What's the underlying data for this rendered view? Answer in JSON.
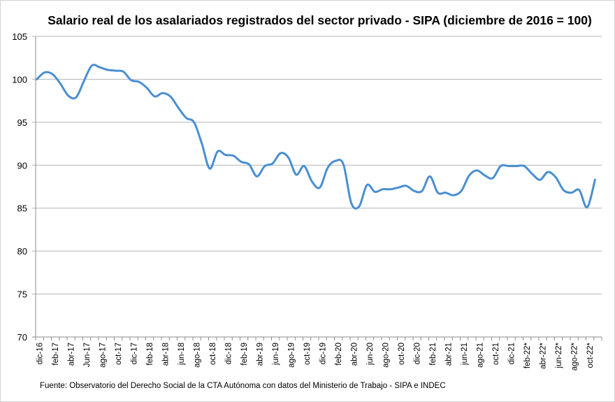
{
  "chart_data": {
    "type": "line",
    "title": "Salario real de los asalariados registrados del sector privado - SIPA (diciembre de 2016 = 100)",
    "xlabel": "",
    "ylabel": "",
    "ylim": [
      70,
      105
    ],
    "yticks": [
      70,
      75,
      80,
      85,
      90,
      95,
      100,
      105
    ],
    "grid": true,
    "legend": "none",
    "line_color": "#4a8fd1",
    "x": [
      "dic-16",
      "ene-17",
      "feb-17",
      "mar-17",
      "abr-17",
      "may-17",
      "Jun-17",
      "jul-17",
      "ago-17",
      "sep-17",
      "oct-17",
      "nov-17",
      "dic-17",
      "ene-18",
      "feb-18",
      "mar-18",
      "abr-18",
      "may-18",
      "jun-18",
      "jul-18",
      "ago-18",
      "sep-18",
      "oct-18",
      "nov-18",
      "dic-18",
      "ene-19",
      "feb-19",
      "mar-19",
      "abr-19",
      "may-19",
      "jun-19",
      "jul-19",
      "ago-19",
      "sep-19",
      "oct-19",
      "nov-19",
      "dic-19",
      "ene-20",
      "feb-20",
      "mar-20",
      "abr-20",
      "may-20",
      "jun-20",
      "jul-20",
      "ago-20",
      "sep-20",
      "oct-20",
      "nov-20",
      "dic-20",
      "ene-21",
      "feb-21",
      "mar-21",
      "abr-21",
      "may-21",
      "jun-21",
      "jul-21",
      "ago-21",
      "sep-21",
      "oct-21",
      "nov-21",
      "dic-21",
      "ene-22*",
      "feb-22*",
      "mar-22*",
      "abr-22*",
      "may-22*",
      "jun-22*",
      "jul-22*",
      "ago-22*",
      "sep-22*",
      "oct-22*",
      "nov-22*"
    ],
    "xtick_labels": [
      "dic-16",
      "feb-17",
      "abr-17",
      "Jun-17",
      "ago-17",
      "oct-17",
      "dic-17",
      "feb-18",
      "abr-18",
      "jun-18",
      "ago-18",
      "oct-18",
      "dic-18",
      "feb-19",
      "abr-19",
      "jun-19",
      "ago-19",
      "oct-19",
      "dic-19",
      "feb-20",
      "abr-20",
      "jun-20",
      "ago-20",
      "oct-20",
      "dic-20",
      "feb-21",
      "abr-21",
      "jun-21",
      "ago-21",
      "oct-21",
      "dic-21",
      "feb-22*",
      "abr-22*",
      "jun-22*",
      "ago-22*",
      "oct-22*"
    ],
    "series": [
      {
        "name": "Salario real",
        "values": [
          100.0,
          100.8,
          100.6,
          99.5,
          98.1,
          97.9,
          99.8,
          101.6,
          101.4,
          101.1,
          101.0,
          100.9,
          99.9,
          99.7,
          99.0,
          98.0,
          98.4,
          98.0,
          96.7,
          95.5,
          95.0,
          92.5,
          89.6,
          91.6,
          91.2,
          91.1,
          90.4,
          90.1,
          88.7,
          89.9,
          90.2,
          91.4,
          90.9,
          88.9,
          89.9,
          88.1,
          87.4,
          89.7,
          90.5,
          90.1,
          85.6,
          85.2,
          87.7,
          86.9,
          87.2,
          87.2,
          87.4,
          87.6,
          87.0,
          87.0,
          88.7,
          86.8,
          86.8,
          86.5,
          87.0,
          88.8,
          89.4,
          88.8,
          88.5,
          89.9,
          89.9,
          89.9,
          89.9,
          89.0,
          88.3,
          89.2,
          88.6,
          87.1,
          86.8,
          87.1,
          85.1,
          88.3
        ]
      }
    ],
    "source": "Fuente: Observatorio del Derecho Social de la CTA Autónoma con datos del Ministerio de Trabajo - SIPA e INDEC"
  }
}
